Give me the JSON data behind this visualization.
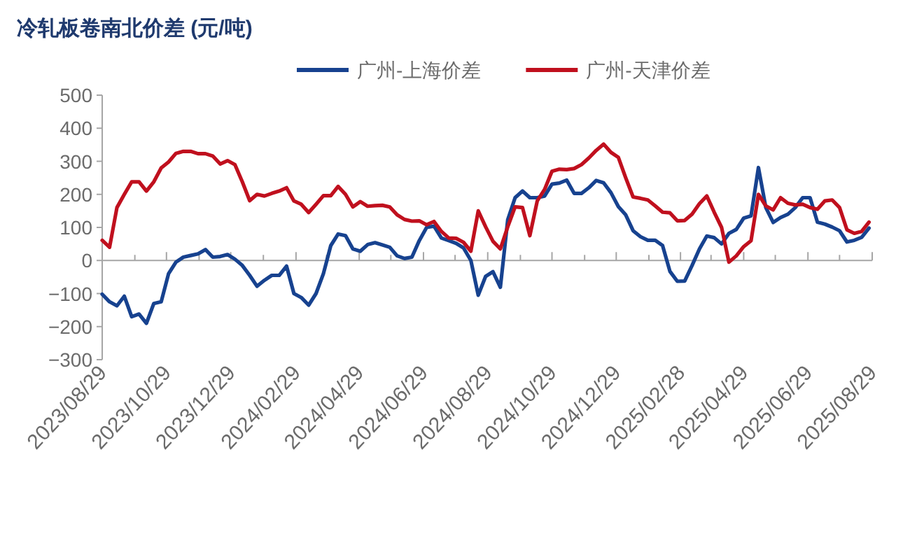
{
  "chart_data": {
    "type": "line",
    "title": "冷轧板卷南北价差 (元/吨)",
    "x": [
      "2023-08-29",
      "2023-09-05",
      "2023-09-12",
      "2023-09-19",
      "2023-09-26",
      "2023-10-03",
      "2023-10-10",
      "2023-10-17",
      "2023-10-24",
      "2023-10-31",
      "2023-11-07",
      "2023-11-14",
      "2023-11-21",
      "2023-11-28",
      "2023-12-05",
      "2023-12-12",
      "2023-12-19",
      "2023-12-26",
      "2024-01-02",
      "2024-01-09",
      "2024-01-16",
      "2024-01-23",
      "2024-01-30",
      "2024-02-06",
      "2024-02-13",
      "2024-02-20",
      "2024-02-27",
      "2024-03-05",
      "2024-03-12",
      "2024-03-19",
      "2024-03-26",
      "2024-04-02",
      "2024-04-09",
      "2024-04-16",
      "2024-04-23",
      "2024-04-30",
      "2024-05-07",
      "2024-05-14",
      "2024-05-21",
      "2024-05-28",
      "2024-06-04",
      "2024-06-11",
      "2024-06-18",
      "2024-06-25",
      "2024-07-02",
      "2024-07-09",
      "2024-07-16",
      "2024-07-23",
      "2024-07-30",
      "2024-08-06",
      "2024-08-13",
      "2024-08-20",
      "2024-08-27",
      "2024-09-03",
      "2024-09-10",
      "2024-09-17",
      "2024-09-24",
      "2024-10-01",
      "2024-10-08",
      "2024-10-15",
      "2024-10-22",
      "2024-10-29",
      "2024-11-05",
      "2024-11-12",
      "2024-11-19",
      "2024-11-26",
      "2024-12-03",
      "2024-12-10",
      "2024-12-17",
      "2024-12-24",
      "2024-12-31",
      "2025-01-07",
      "2025-01-14",
      "2025-01-21",
      "2025-01-28",
      "2025-02-04",
      "2025-02-11",
      "2025-02-18",
      "2025-02-25",
      "2025-03-04",
      "2025-03-11",
      "2025-03-18",
      "2025-03-25",
      "2025-04-01",
      "2025-04-08",
      "2025-04-15",
      "2025-04-22",
      "2025-04-29",
      "2025-05-06",
      "2025-05-13",
      "2025-05-20",
      "2025-05-27",
      "2025-06-03",
      "2025-06-10",
      "2025-06-17",
      "2025-06-24",
      "2025-07-01",
      "2025-07-08",
      "2025-07-15",
      "2025-07-22",
      "2025-07-29",
      "2025-08-05",
      "2025-08-12",
      "2025-08-19",
      "2025-08-26"
    ],
    "series": [
      {
        "name": "广州-上海价差",
        "color": "#17428f",
        "values": [
          -102,
          -125,
          -137,
          -108,
          -170,
          -162,
          -190,
          -130,
          -125,
          -40,
          -5,
          10,
          15,
          20,
          33,
          10,
          12,
          18,
          4,
          -15,
          -45,
          -78,
          -60,
          -45,
          -45,
          -17,
          -100,
          -112,
          -135,
          -100,
          -40,
          45,
          80,
          75,
          35,
          28,
          48,
          54,
          47,
          40,
          14,
          6,
          10,
          60,
          100,
          104,
          68,
          60,
          52,
          38,
          0,
          -105,
          -48,
          -34,
          -81,
          123,
          190,
          210,
          190,
          190,
          195,
          231,
          234,
          243,
          203,
          203,
          220,
          242,
          235,
          205,
          163,
          138,
          90,
          72,
          61,
          61,
          45,
          -33,
          -63,
          -62,
          -15,
          35,
          74,
          69,
          50,
          82,
          94,
          128,
          135,
          281,
          160,
          115,
          130,
          140,
          160,
          190,
          190,
          116,
          110,
          101,
          90,
          56,
          61,
          70,
          98
        ]
      },
      {
        "name": "广州-天津价差",
        "color": "#c0101e",
        "values": [
          61,
          40,
          160,
          200,
          238,
          238,
          210,
          238,
          280,
          298,
          324,
          330,
          330,
          323,
          323,
          316,
          292,
          302,
          290,
          238,
          181,
          200,
          195,
          203,
          210,
          220,
          180,
          170,
          145,
          170,
          196,
          196,
          224,
          200,
          162,
          178,
          164,
          166,
          167,
          162,
          138,
          124,
          119,
          120,
          108,
          118,
          88,
          68,
          67,
          55,
          28,
          150,
          102,
          58,
          35,
          102,
          162,
          160,
          75,
          180,
          215,
          270,
          276,
          275,
          278,
          290,
          310,
          333,
          352,
          327,
          312,
          250,
          192,
          188,
          183,
          165,
          146,
          144,
          120,
          121,
          140,
          172,
          195,
          146,
          100,
          -5,
          14,
          42,
          60,
          200,
          165,
          153,
          190,
          173,
          168,
          170,
          160,
          155,
          180,
          183,
          160,
          93,
          82,
          88,
          116
        ]
      }
    ],
    "xlim": [
      "2023-08-29",
      "2025-08-29"
    ],
    "xticks": [
      {
        "value": "2023-08-29",
        "label": "2023/08/29"
      },
      {
        "value": "2023-09-29",
        "label": null
      },
      {
        "value": "2023-10-29",
        "label": "2023/10/29"
      },
      {
        "value": "2023-11-29",
        "label": null
      },
      {
        "value": "2023-12-29",
        "label": "2023/12/29"
      },
      {
        "value": "2024-01-29",
        "label": null
      },
      {
        "value": "2024-02-29",
        "label": "2024/02/29"
      },
      {
        "value": "2024-03-29",
        "label": null
      },
      {
        "value": "2024-04-29",
        "label": "2024/04/29"
      },
      {
        "value": "2024-05-29",
        "label": null
      },
      {
        "value": "2024-06-29",
        "label": "2024/06/29"
      },
      {
        "value": "2024-07-29",
        "label": null
      },
      {
        "value": "2024-08-29",
        "label": "2024/08/29"
      },
      {
        "value": "2024-09-29",
        "label": null
      },
      {
        "value": "2024-10-29",
        "label": "2024/10/29"
      },
      {
        "value": "2024-11-29",
        "label": null
      },
      {
        "value": "2024-12-29",
        "label": "2024/12/29"
      },
      {
        "value": "2025-01-29",
        "label": null
      },
      {
        "value": "2025-02-28",
        "label": "2025/02/28"
      },
      {
        "value": "2025-03-29",
        "label": null
      },
      {
        "value": "2025-04-29",
        "label": "2025/04/29"
      },
      {
        "value": "2025-05-29",
        "label": null
      },
      {
        "value": "2025-06-29",
        "label": "2025/06/29"
      },
      {
        "value": "2025-07-29",
        "label": null
      },
      {
        "value": "2025-08-29",
        "label": "2025/08/29"
      }
    ],
    "ylim": [
      -300,
      500
    ],
    "yticks": [
      -300,
      -200,
      -100,
      0,
      100,
      200,
      300,
      400,
      500
    ],
    "legend": "top",
    "marker": "none",
    "line_style": "solid"
  }
}
